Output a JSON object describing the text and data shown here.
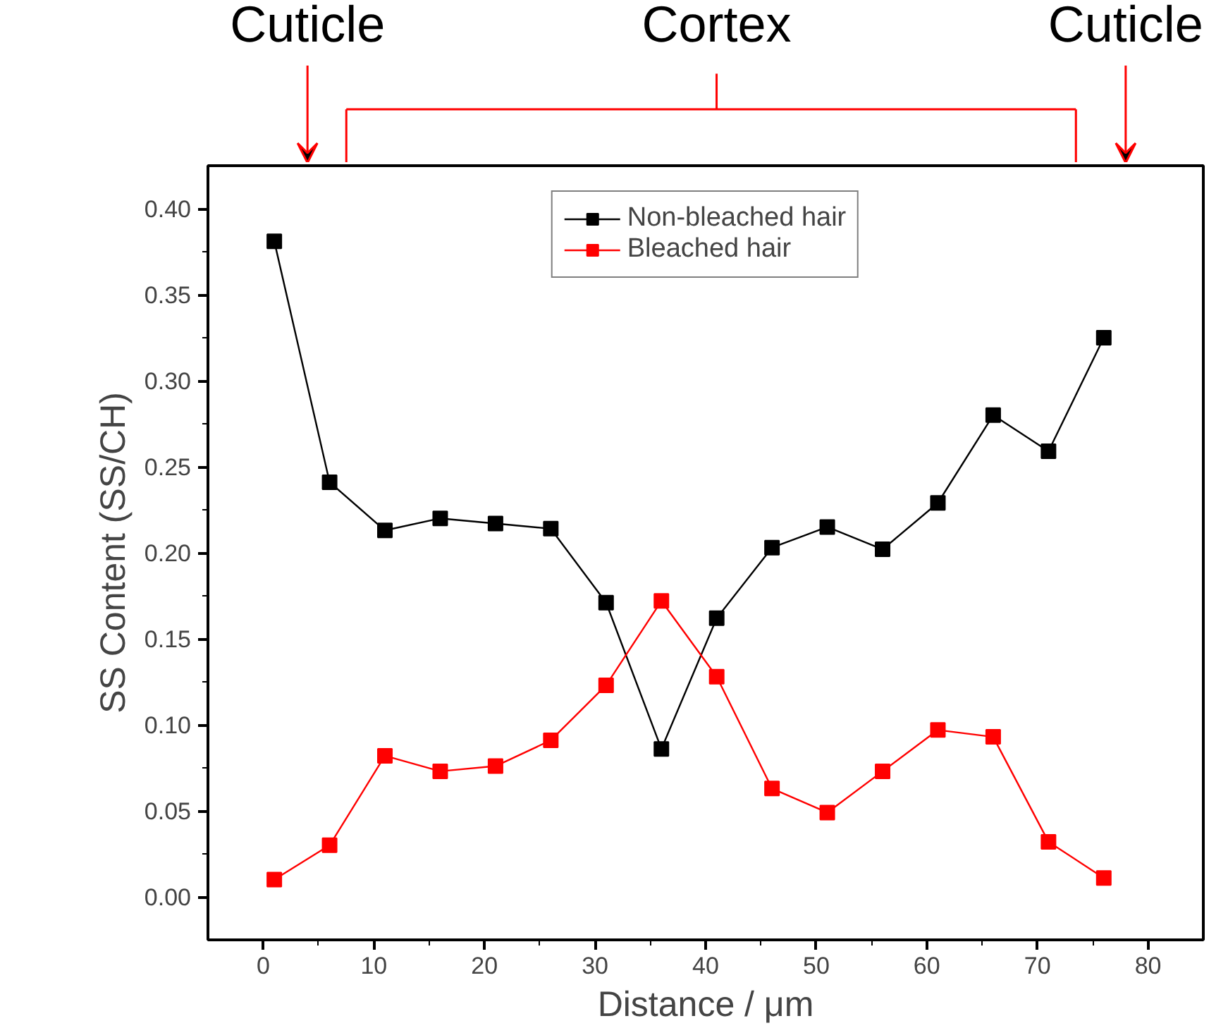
{
  "chart_data": {
    "type": "line",
    "xlabel": "Distance / μm",
    "ylabel": "SS Content (SS/CH)",
    "x": [
      1,
      6,
      11,
      16,
      21,
      26,
      31,
      36,
      41,
      46,
      51,
      56,
      61,
      66,
      71,
      76
    ],
    "series": [
      {
        "name": "Non-bleached hair",
        "color": "#000000",
        "values": [
          0.381,
          0.241,
          0.213,
          0.22,
          0.217,
          0.214,
          0.171,
          0.086,
          0.162,
          0.203,
          0.215,
          0.202,
          0.229,
          0.28,
          0.259,
          0.325
        ]
      },
      {
        "name": "Bleached hair",
        "color": "#ff0000",
        "values": [
          0.01,
          0.03,
          0.082,
          0.073,
          0.076,
          0.091,
          0.123,
          0.172,
          0.128,
          0.063,
          0.049,
          0.073,
          0.097,
          0.093,
          0.032,
          0.011
        ]
      }
    ],
    "xlim": [
      -5,
      85
    ],
    "xticks": [
      0,
      10,
      20,
      30,
      40,
      50,
      60,
      70,
      80
    ],
    "ylim": [
      -0.025,
      0.425
    ],
    "yticks": [
      {
        "value": 0,
        "label": "0.00"
      },
      {
        "value": 0.05,
        "label": "0.05"
      },
      {
        "value": 0.1,
        "label": "0.10"
      },
      {
        "value": 0.15,
        "label": "0.15"
      },
      {
        "value": 0.2,
        "label": "0.20"
      },
      {
        "value": 0.25,
        "label": "0.25"
      },
      {
        "value": 0.3,
        "label": "0.30"
      },
      {
        "value": 0.35,
        "label": "0.35"
      },
      {
        "value": 0.4,
        "label": "0.40"
      }
    ],
    "annotations": [
      "Cuticle",
      "Cortex",
      "Cuticle"
    ],
    "grid": false,
    "legend": "top",
    "marker": "square",
    "line_style": "solid"
  }
}
